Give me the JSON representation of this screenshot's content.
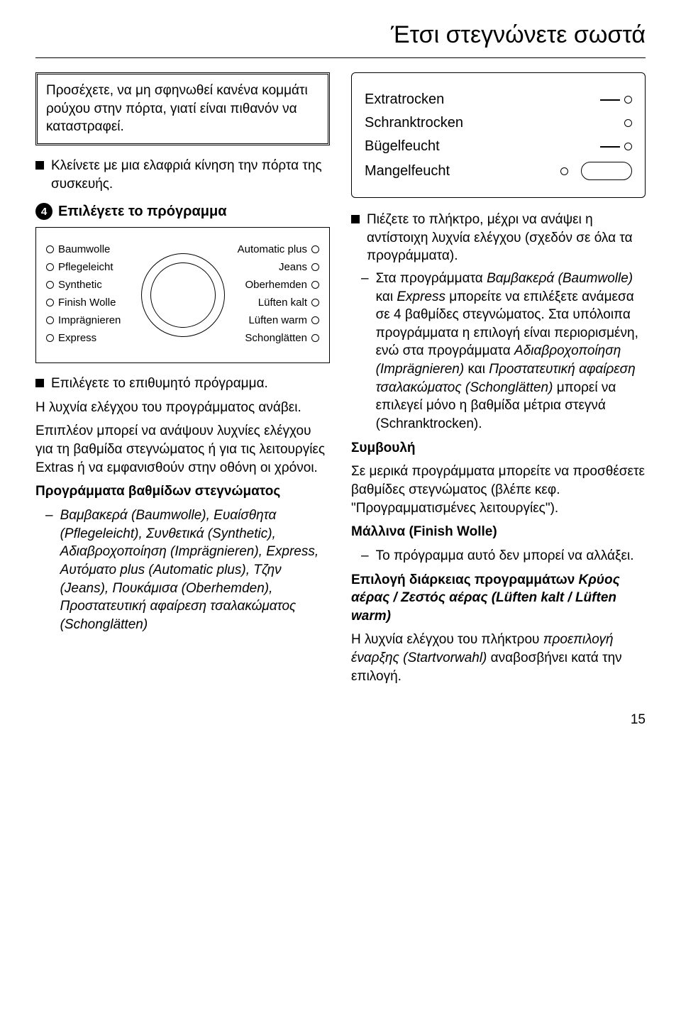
{
  "title": "Έτσι στεγνώνετε σωστά",
  "warning": "Προσέχετε, να μη σφηνωθεί κανένα κομμάτι ρούχου στην πόρτα, γιατί είναι πιθανόν να καταστραφεί.",
  "bullet_close": "Κλείνετε με μια ελαφριά κίνηση την πόρτα της συσκευής.",
  "step4_num": "4",
  "step4_text": "Επιλέγετε το πρόγραμμα",
  "dial": {
    "left": [
      "Baumwolle",
      "Pflegeleicht",
      "Synthetic",
      "Finish Wolle",
      "Imprägnieren",
      "Express"
    ],
    "right": [
      "Automatic plus",
      "Jeans",
      "Oberhemden",
      "Lüften kalt",
      "Lüften warm",
      "Schonglätten"
    ]
  },
  "bullet_select": "Επιλέγετε το επιθυμητό πρόγραμμα.",
  "para_led": "Η λυχνία ελέγχου του προγράμματος ανάβει.",
  "para_extra": "Επιπλέον μπορεί να ανάψουν λυχνίες ελέγχου για τη βαθμίδα στεγνώματος ή για τις λειτουργίες Extras ή να εμφανισθούν στην οθόνη οι χρόνοι.",
  "heading_levels": "Προγράμματα βαθμίδων στεγνώματος",
  "dash_programs": "Βαμβακερά (Baumwolle), Ευαίσθητα (Pflegeleicht), Συνθετικά (Synthetic), Αδιαβροχοποίηση (Imprägnieren), Express, Αυτόματο plus (Automatic plus), Τζην (Jeans), Πουκάμισα (Oberhemden), Προστατευτική αφαίρεση τσαλακώματος (Schonglätten)",
  "dry_labels": {
    "extratrocken": "Extratrocken",
    "schranktrocken": "Schranktrocken",
    "bugelfeucht": "Bügelfeucht",
    "mangelfeucht": "Mangelfeucht"
  },
  "bullet_press": "Πιέζετε το πλήκτρο, μέχρι να ανάψει η αντίστοιχη λυχνία ελέγχου (σχεδόν σε όλα τα προγράμματα).",
  "dash_4levels_a": "Στα προγράμματα ",
  "dash_4levels_b": "Βαμβακερά (Baumwolle)",
  "dash_4levels_c": " και ",
  "dash_4levels_d": "Express",
  "dash_4levels_e": " μπορείτε να επιλέξετε ανάμεσα σε 4 βαθμίδες στεγνώματος. Στα υπόλοιπα προγράμματα η επιλογή είναι περιορισμένη, ενώ στα προγράμματα ",
  "dash_4levels_f": "Αδιαβροχοποίηση (Imprägnieren)",
  "dash_4levels_g": " και ",
  "dash_4levels_h": "Προστατευτική αφαίρεση τσαλακώματος (Schonglätten)",
  "dash_4levels_i": " μπορεί να επιλεγεί μόνο η βαθμίδα μέτρια στεγνά (Schranktrocken).",
  "heading_tip": "Συμβουλή",
  "para_tip": "Σε μερικά προγράμματα μπορείτε να προσθέσετε βαθμίδες στεγνώματος (βλέπε κεφ. \"Προγραμματισμένες λειτουργίες\").",
  "heading_wool": "Μάλλινα (Finish Wolle)",
  "dash_wool": "Το πρόγραμμα αυτό δεν μπορεί να αλλάξει.",
  "heading_airing_a": "Επιλογή διάρκειας προγραμμάτων ",
  "heading_airing_b": "Κρύος αέρας / Ζεστός αέρας (Lüften kalt / Lüften warm)",
  "para_airing_a": "Η λυχνία ελέγχου του πλήκτρου ",
  "para_airing_b": "προεπιλογή έναρξης (Startvorwahl)",
  "para_airing_c": " αναβοσβήνει κατά την επιλογή.",
  "page": "15",
  "colors": {
    "fg": "#000000",
    "bg": "#ffffff"
  }
}
